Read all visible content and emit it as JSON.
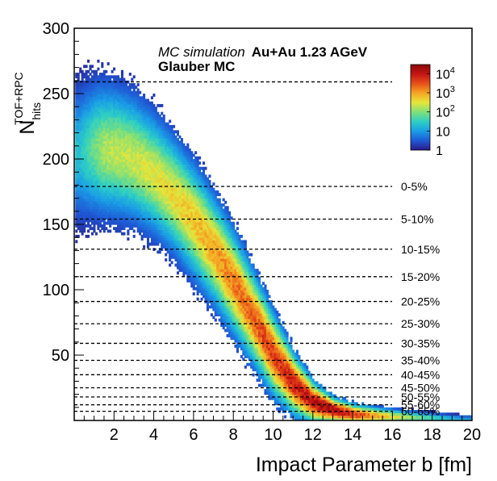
{
  "chart_data": {
    "type": "heatmap",
    "xlabel": "Impact Parameter b [fm]",
    "ylabel_main": "N",
    "ylabel_sub": "hits",
    "ylabel_sup": "TOF+RPC",
    "xlim": [
      0,
      20
    ],
    "ylim": [
      0,
      300
    ],
    "x_ticks": [
      2,
      4,
      6,
      8,
      10,
      12,
      14,
      16,
      18,
      20
    ],
    "y_ticks": [
      50,
      100,
      150,
      200,
      250,
      300
    ],
    "annotations": {
      "line1_italic": "MC simulation",
      "line1_bold": "Au+Au 1.23 AGeV",
      "line2_bold": "Glauber MC"
    },
    "colorbar": {
      "scale": "log",
      "range": [
        1,
        30000
      ],
      "labels": [
        {
          "base": "1",
          "exp": "",
          "value": 1
        },
        {
          "base": "10",
          "exp": "",
          "value": 10
        },
        {
          "base": "10",
          "exp": "2",
          "value": 100
        },
        {
          "base": "10",
          "exp": "3",
          "value": 1000
        },
        {
          "base": "10",
          "exp": "4",
          "value": 10000
        }
      ],
      "colors": [
        "#2b1a8a",
        "#1f5ad6",
        "#1a9ee6",
        "#2ecfc4",
        "#7fe07a",
        "#e6e63c",
        "#f5a623",
        "#e8501a",
        "#c41414",
        "#8b0a0a"
      ]
    },
    "centrality_classes": [
      {
        "label": "0-5%",
        "y": 179
      },
      {
        "label": "5-10%",
        "y": 154
      },
      {
        "label": "10-15%",
        "y": 131
      },
      {
        "label": "15-20%",
        "y": 110
      },
      {
        "label": "20-25%",
        "y": 91
      },
      {
        "label": "25-30%",
        "y": 74
      },
      {
        "label": "30-35%",
        "y": 59
      },
      {
        "label": "35-40%",
        "y": 46
      },
      {
        "label": "40-45%",
        "y": 35
      },
      {
        "label": "45-50%",
        "y": 25
      },
      {
        "label": "50-55%",
        "y": 18
      },
      {
        "label": "55-60%",
        "y": 12
      },
      {
        "label": "60-65%",
        "y": 7
      }
    ],
    "max_line_y": 259,
    "band": [
      {
        "b": 0.2,
        "center": 205,
        "width": 26
      },
      {
        "b": 1.0,
        "center": 208,
        "width": 26
      },
      {
        "b": 2.0,
        "center": 206,
        "width": 25
      },
      {
        "b": 3.0,
        "center": 200,
        "width": 24
      },
      {
        "b": 4.0,
        "center": 188,
        "width": 23
      },
      {
        "b": 5.0,
        "center": 172,
        "width": 22
      },
      {
        "b": 6.0,
        "center": 152,
        "width": 22
      },
      {
        "b": 7.0,
        "center": 130,
        "width": 21
      },
      {
        "b": 8.0,
        "center": 105,
        "width": 20
      },
      {
        "b": 9.0,
        "center": 78,
        "width": 18
      },
      {
        "b": 10.0,
        "center": 50,
        "width": 16
      },
      {
        "b": 11.0,
        "center": 28,
        "width": 12
      },
      {
        "b": 12.0,
        "center": 14,
        "width": 8
      },
      {
        "b": 13.0,
        "center": 8,
        "width": 5
      },
      {
        "b": 14.0,
        "center": 5,
        "width": 4
      },
      {
        "b": 16.0,
        "center": 3,
        "width": 3
      },
      {
        "b": 18.0,
        "center": 2,
        "width": 2
      },
      {
        "b": 19.5,
        "center": 1,
        "width": 1.5
      }
    ],
    "band_intensity": [
      {
        "b": 0.2,
        "v": 0.3
      },
      {
        "b": 1.5,
        "v": 0.5
      },
      {
        "b": 4.0,
        "v": 0.55
      },
      {
        "b": 6.0,
        "v": 0.62
      },
      {
        "b": 8.0,
        "v": 0.72
      },
      {
        "b": 10.0,
        "v": 0.82
      },
      {
        "b": 12.0,
        "v": 0.92
      },
      {
        "b": 13.0,
        "v": 0.95
      },
      {
        "b": 15.0,
        "v": 0.7
      },
      {
        "b": 17.0,
        "v": 0.45
      },
      {
        "b": 19.5,
        "v": 0.25
      }
    ]
  }
}
